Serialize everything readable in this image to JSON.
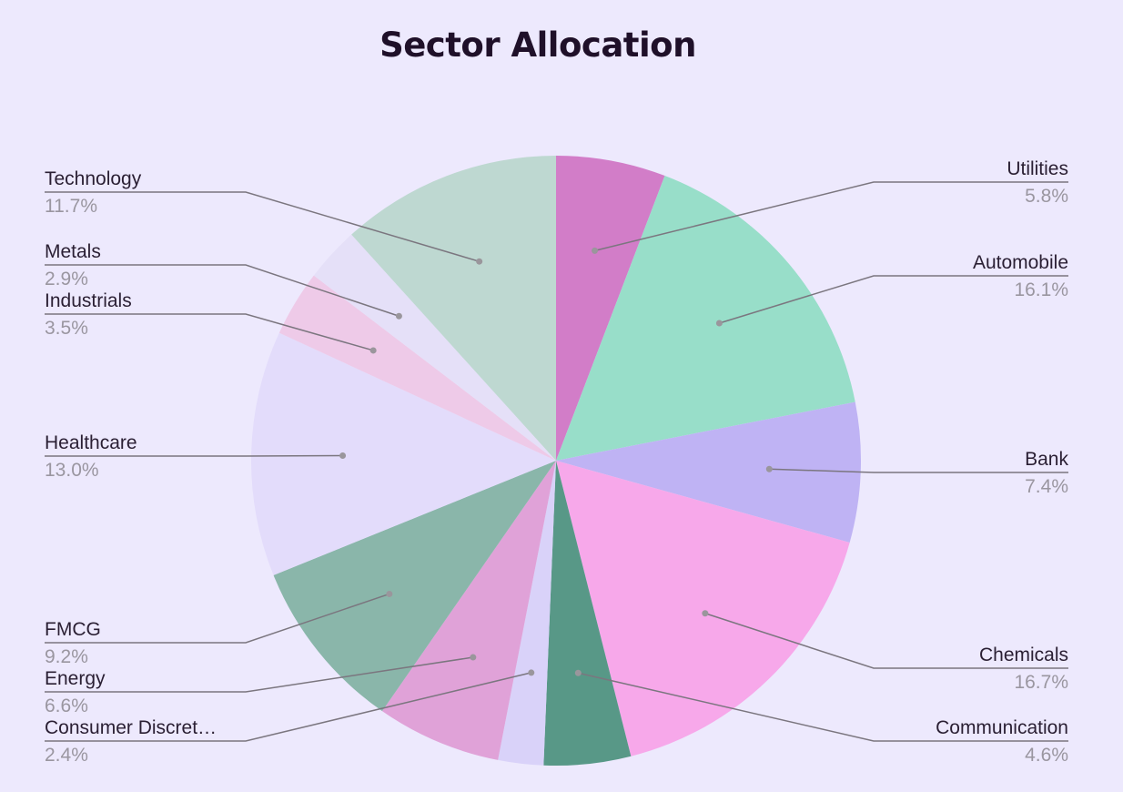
{
  "chart_data": {
    "type": "pie",
    "title": "Sector Allocation",
    "start": "top",
    "direction": "clockwise",
    "slices": [
      {
        "label": "Utilities",
        "pct_label": "5.8%",
        "value": 5.8,
        "color": "#d27dc8",
        "side": "right"
      },
      {
        "label": "Automobile",
        "pct_label": "16.1%",
        "value": 16.1,
        "color": "#98dec9",
        "side": "right"
      },
      {
        "label": "Bank",
        "pct_label": "7.4%",
        "value": 7.4,
        "color": "#bfb3f4",
        "side": "right"
      },
      {
        "label": "Chemicals",
        "pct_label": "16.7%",
        "value": 16.7,
        "color": "#f7a8ea",
        "side": "right"
      },
      {
        "label": "Communication",
        "pct_label": "4.6%",
        "value": 4.6,
        "color": "#589887",
        "side": "right"
      },
      {
        "label": "Consumer Discret…",
        "pct_label": "2.4%",
        "value": 2.4,
        "color": "#d9d2f9",
        "side": "left"
      },
      {
        "label": "Energy",
        "pct_label": "6.6%",
        "value": 6.6,
        "color": "#e0a2d8",
        "side": "left"
      },
      {
        "label": "FMCG",
        "pct_label": "9.2%",
        "value": 9.2,
        "color": "#8ab6aa",
        "side": "left"
      },
      {
        "label": "Healthcare",
        "pct_label": "13.0%",
        "value": 13.0,
        "color": "#e3dcfb",
        "side": "left"
      },
      {
        "label": "Industrials",
        "pct_label": "3.5%",
        "value": 3.5,
        "color": "#eecae8",
        "side": "left"
      },
      {
        "label": "Metals",
        "pct_label": "2.9%",
        "value": 2.9,
        "color": "#e5e0f8",
        "side": "left"
      },
      {
        "label": "Technology",
        "pct_label": "11.7%",
        "value": 11.7,
        "color": "#bed8d1",
        "side": "left"
      }
    ]
  }
}
